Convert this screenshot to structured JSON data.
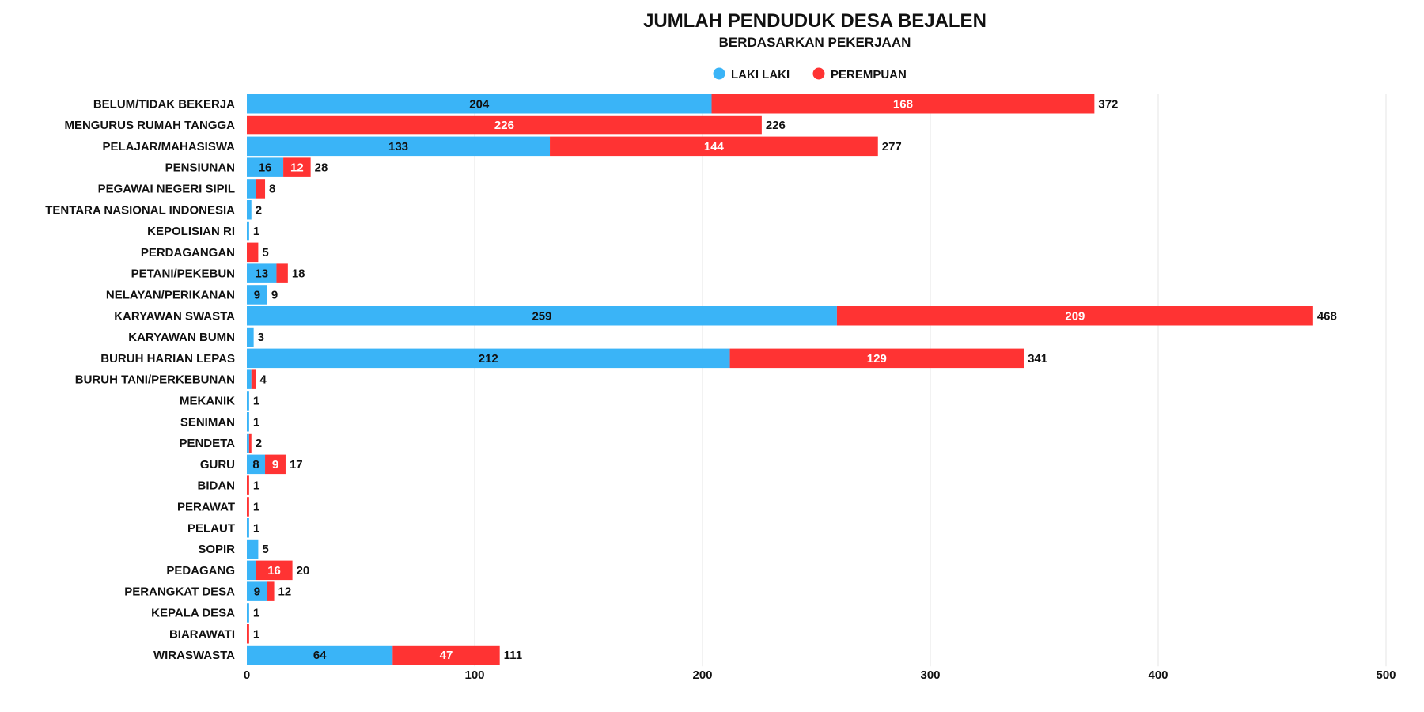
{
  "chart_data": {
    "type": "bar",
    "orientation": "horizontal",
    "stacked": true,
    "title": "JUMLAH PENDUDUK DESA BEJALEN",
    "subtitle": "BERDASARKAN PEKERJAAN",
    "xlim": [
      0,
      500
    ],
    "x_ticks": [
      "0",
      "100",
      "200",
      "300",
      "400",
      "500"
    ],
    "grid": true,
    "legend_position": "top-center",
    "categories": [
      "BELUM/TIDAK BEKERJA",
      "MENGURUS RUMAH TANGGA",
      "PELAJAR/MAHASISWA",
      "PENSIUNAN",
      "PEGAWAI NEGERI SIPIL",
      "TENTARA NASIONAL INDONESIA",
      "KEPOLISIAN RI",
      "PERDAGANGAN",
      "PETANI/PEKEBUN",
      "NELAYAN/PERIKANAN",
      "KARYAWAN SWASTA",
      "KARYAWAN BUMN",
      "BURUH HARIAN LEPAS",
      "BURUH TANI/PERKEBUNAN",
      "MEKANIK",
      "SENIMAN",
      "PENDETA",
      "GURU",
      "BIDAN",
      "PERAWAT",
      "PELAUT",
      "SOPIR",
      "PEDAGANG",
      "PERANGKAT DESA",
      "KEPALA DESA",
      "BIARAWATI",
      "WIRASWASTA"
    ],
    "series": [
      {
        "name": "LAKI LAKI",
        "color": "#3AB4F7",
        "label_color": "#111111",
        "values": [
          204,
          0,
          133,
          16,
          4,
          2,
          1,
          0,
          13,
          9,
          259,
          3,
          212,
          2,
          1,
          1,
          1,
          8,
          0,
          0,
          1,
          5,
          4,
          9,
          1,
          0,
          64
        ]
      },
      {
        "name": "PEREMPUAN",
        "color": "#FF3333",
        "label_color": "#ffffff",
        "values": [
          168,
          226,
          144,
          12,
          4,
          0,
          0,
          5,
          5,
          0,
          209,
          0,
          129,
          2,
          0,
          0,
          1,
          9,
          1,
          1,
          0,
          0,
          16,
          3,
          0,
          1,
          47
        ]
      }
    ],
    "totals": [
      372,
      226,
      277,
      28,
      8,
      2,
      1,
      5,
      18,
      9,
      468,
      3,
      341,
      4,
      1,
      1,
      2,
      17,
      1,
      1,
      1,
      5,
      20,
      12,
      1,
      1,
      111
    ],
    "segment_label_min": 8
  }
}
